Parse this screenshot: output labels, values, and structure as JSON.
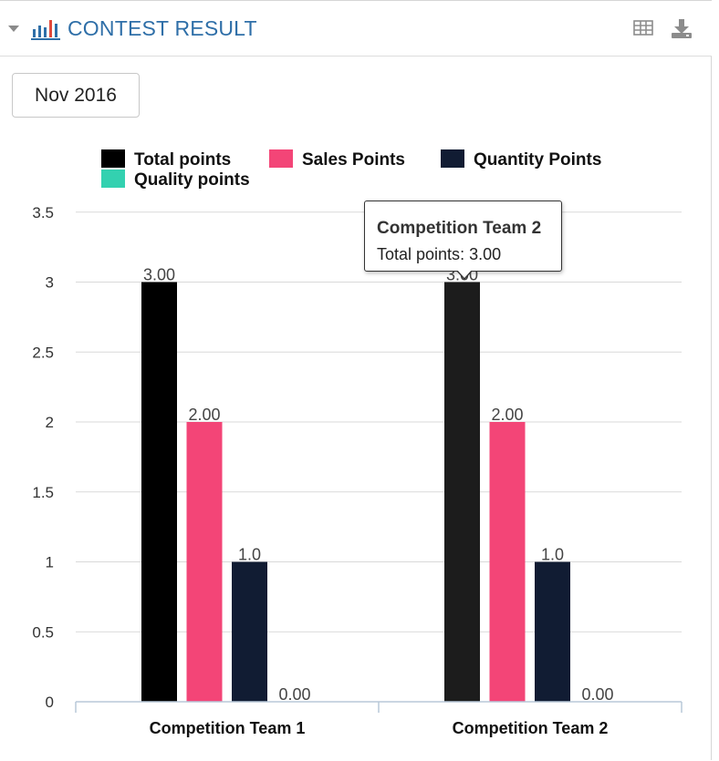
{
  "header": {
    "title": "CONTEST RESULT",
    "icons": [
      "collapse-caret-icon",
      "bar-chart-icon",
      "table-view-icon",
      "download-icon"
    ]
  },
  "period_selector": {
    "value": "Nov 2016"
  },
  "colors": {
    "total": "#000000",
    "sales": "#f34577",
    "quantity": "#111c33",
    "quality": "#33d1b0",
    "title": "#2f6fa8"
  },
  "chart_data": {
    "type": "bar",
    "categories": [
      "Competition Team 1",
      "Competition Team 2"
    ],
    "series": [
      {
        "name": "Total points",
        "values": [
          3,
          3
        ],
        "labels": [
          "3.00",
          "3.00"
        ]
      },
      {
        "name": "Sales Points",
        "values": [
          2,
          2
        ],
        "labels": [
          "2.00",
          "2.00"
        ]
      },
      {
        "name": "Quantity Points",
        "values": [
          1,
          1
        ],
        "labels": [
          "1.0",
          "1.0"
        ]
      },
      {
        "name": "Quality points",
        "values": [
          0,
          0
        ],
        "labels": [
          "0.00",
          "0.00"
        ]
      }
    ],
    "yticks": [
      "0",
      "0.5",
      "1",
      "1.5",
      "2",
      "2.5",
      "3",
      "3.5"
    ],
    "ylim": [
      0,
      3.5
    ],
    "grid": true,
    "legend": "top"
  },
  "tooltip": {
    "title": "Competition Team 2",
    "series": "Total points",
    "value": "3.00"
  }
}
